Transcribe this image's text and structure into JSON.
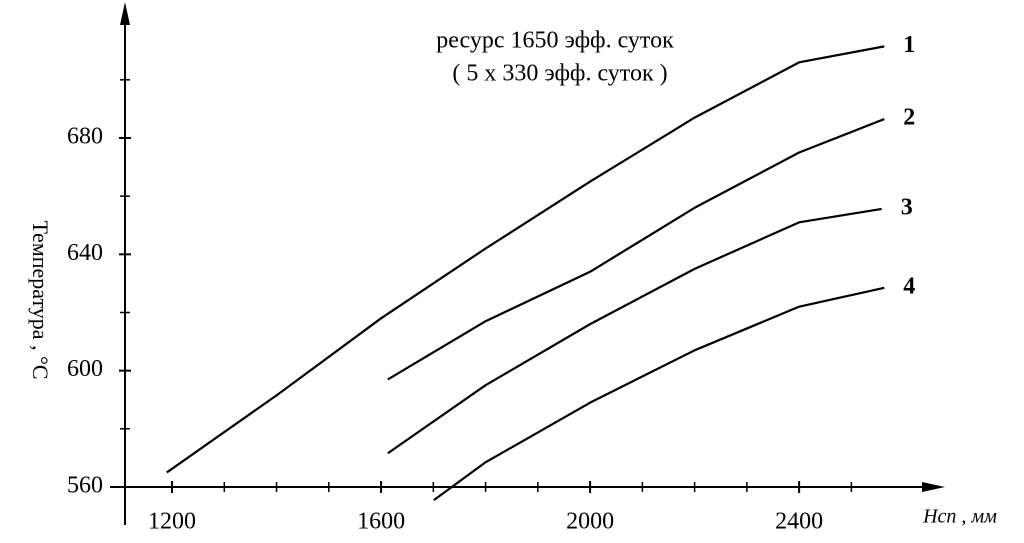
{
  "chart_data": {
    "type": "line",
    "title": "ресурс 1650 эфф. суток",
    "subtitle": "( 5 х 330 эфф. суток )",
    "y_label": "Температура , °C",
    "x_label": "Hсп , мм",
    "xlim": [
      1110,
      2660
    ],
    "ylim": [
      560,
      724
    ],
    "xticks": [
      1200,
      1600,
      2000,
      2400
    ],
    "yticks": [
      560,
      600,
      640,
      680
    ],
    "x_minor_ticks": [
      1300,
      1400,
      1500,
      1700,
      1800,
      1900,
      2100,
      2200,
      2300,
      2500
    ],
    "y_minor_ticks": [
      580,
      620,
      660,
      700
    ],
    "series": [
      {
        "name": "1",
        "color": "#000000",
        "x": [
          1190,
          1400,
          1600,
          1800,
          2000,
          2200,
          2400,
          2563
        ],
        "values": [
          565,
          591.5,
          618,
          642,
          665,
          687,
          706,
          711.5
        ]
      },
      {
        "name": "2",
        "color": "#000000",
        "x": [
          1613,
          1800,
          2000,
          2200,
          2400,
          2563
        ],
        "values": [
          597,
          617,
          634,
          656,
          675,
          686.5
        ]
      },
      {
        "name": "3",
        "color": "#000000",
        "x": [
          1613,
          1800,
          2000,
          2200,
          2400,
          2558
        ],
        "values": [
          571.6,
          595,
          616,
          635,
          651,
          655.6
        ]
      },
      {
        "name": "4",
        "color": "#000000",
        "x": [
          1701,
          1800,
          2000,
          2200,
          2400,
          2563
        ],
        "values": [
          555.5,
          568.5,
          589,
          607,
          622,
          628.5
        ]
      }
    ]
  }
}
